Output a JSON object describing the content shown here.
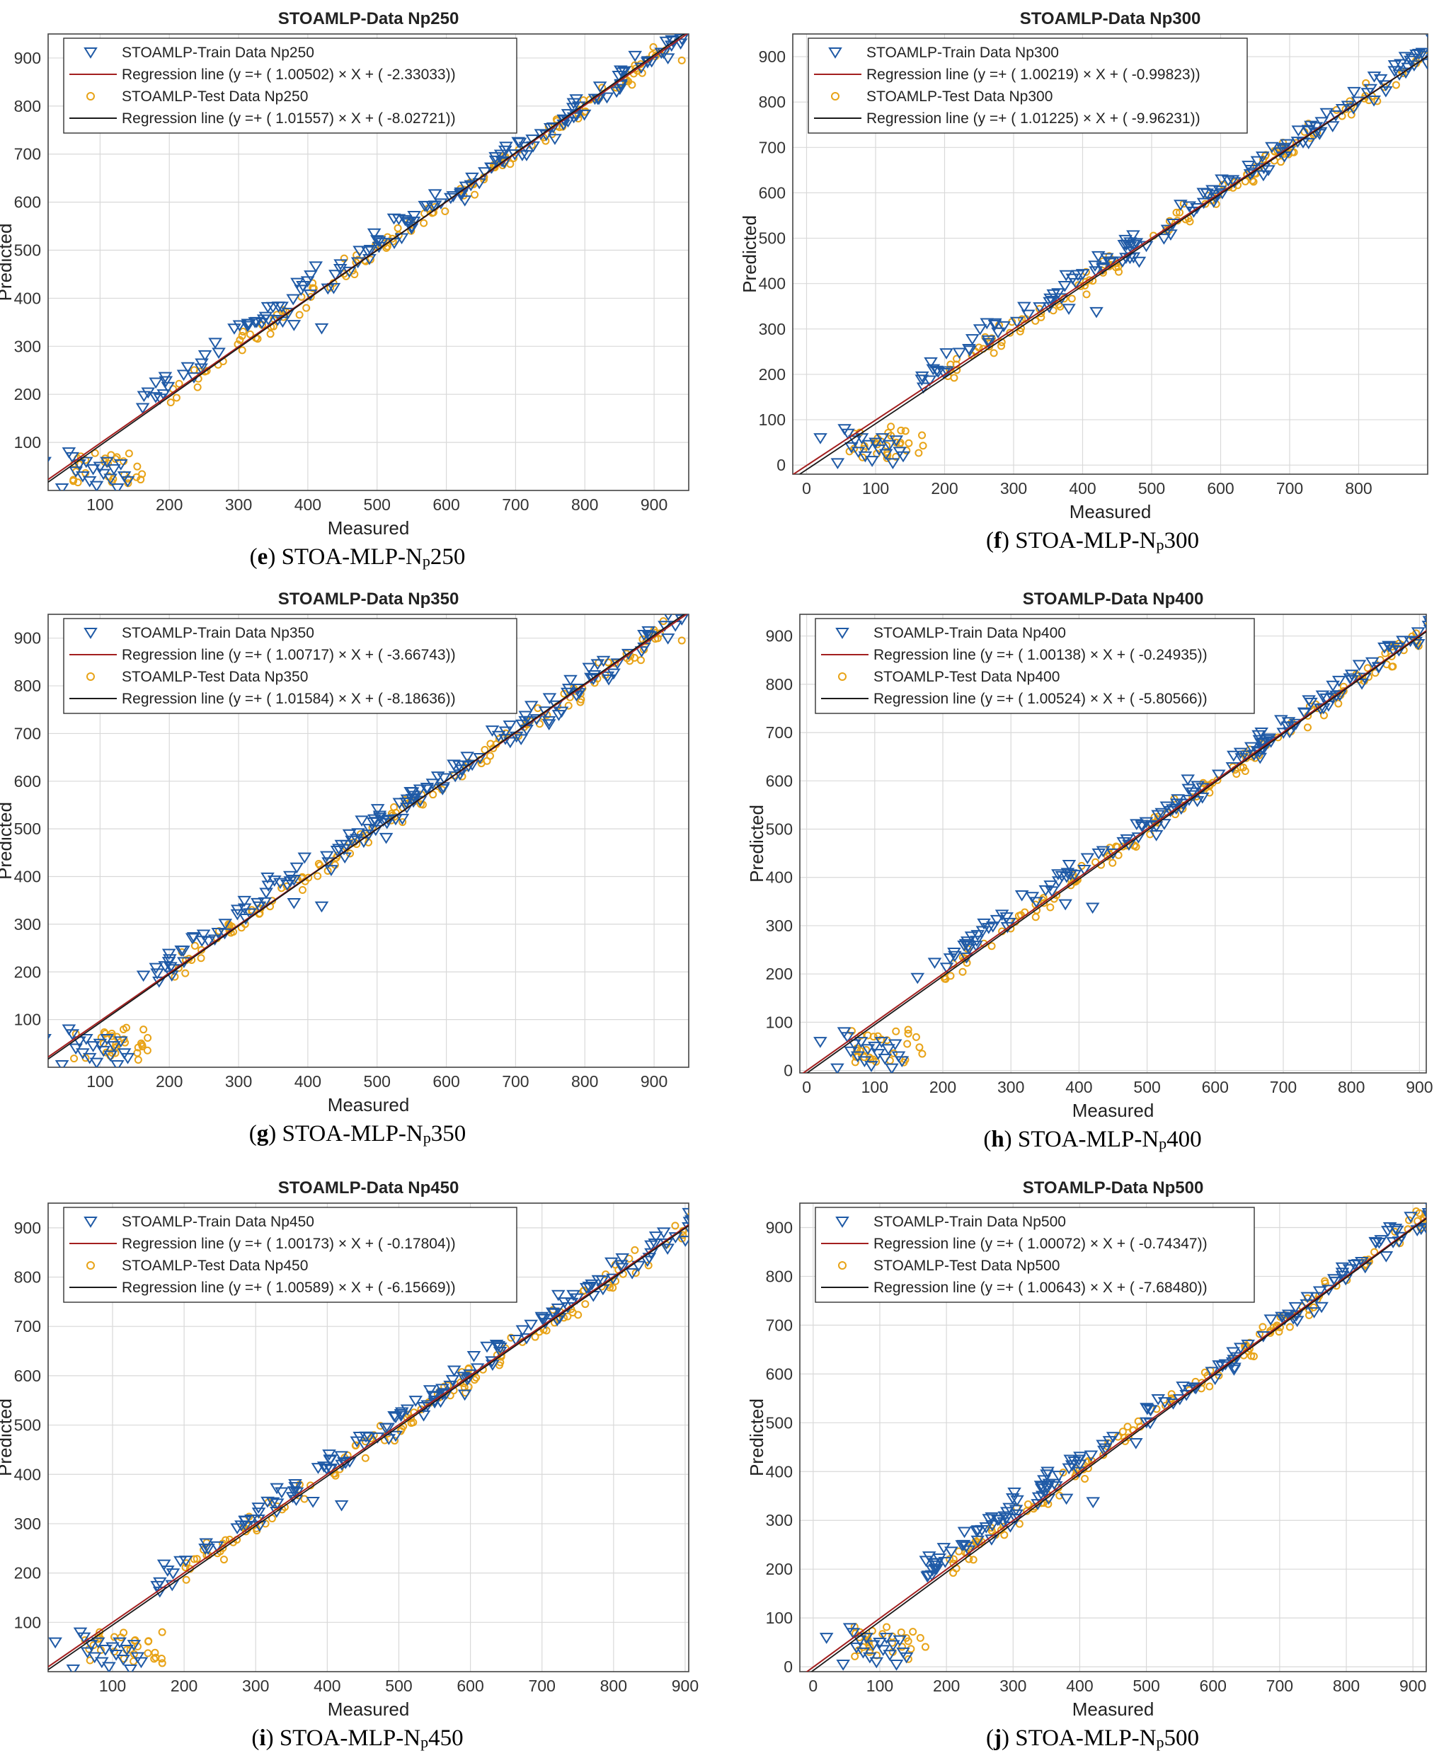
{
  "colors": {
    "train": "#1f5aa6",
    "test": "#e8a317",
    "reg_train": "#a31f1f",
    "reg_test": "#1a1a1a",
    "grid": "#d9d9d9"
  },
  "chart_data": [
    {
      "type": "scatter",
      "id": "e",
      "title": "STOAMLP-Data Np250",
      "xlabel": "Measured",
      "ylabel": "Predicted",
      "xlim": [
        25,
        950
      ],
      "ylim": [
        0,
        950
      ],
      "xticks": [
        100,
        200,
        300,
        400,
        500,
        600,
        700,
        800,
        900
      ],
      "yticks": [
        100,
        200,
        300,
        400,
        500,
        600,
        700,
        800,
        900
      ],
      "legend": [
        "STOAMLP-Train Data Np250",
        "Regression line (y =+ ( 1.00502) × X + ( -2.33033))",
        "STOAMLP-Test Data Np250",
        "Regression line (y =+ ( 1.01557) × X + ( -8.02721))"
      ],
      "reg_train": {
        "slope": 1.00502,
        "intercept": -2.33033
      },
      "reg_test": {
        "slope": 1.01557,
        "intercept": -8.02721
      },
      "caption": {
        "letter": "e",
        "prefix": "STOA-MLP-N",
        "sub": "p",
        "suffix": "250"
      }
    },
    {
      "type": "scatter",
      "id": "f",
      "title": "STOAMLP-Data Np300",
      "xlabel": "Measured",
      "ylabel": "Predicted",
      "xlim": [
        -20,
        900
      ],
      "ylim": [
        -20,
        950
      ],
      "xticks": [
        0,
        100,
        200,
        300,
        400,
        500,
        600,
        700,
        800
      ],
      "yticks": [
        0,
        100,
        200,
        300,
        400,
        500,
        600,
        700,
        800,
        900
      ],
      "legend": [
        "STOAMLP-Train Data Np300",
        "Regression line (y =+ ( 1.00219) × X + ( -0.99823))",
        "STOAMLP-Test Data Np300",
        "Regression line (y =+ ( 1.01225) × X + ( -9.96231))"
      ],
      "reg_train": {
        "slope": 1.00219,
        "intercept": -0.99823
      },
      "reg_test": {
        "slope": 1.01225,
        "intercept": -9.96231
      },
      "caption": {
        "letter": "f",
        "prefix": "STOA-MLP-N",
        "sub": "p",
        "suffix": "300"
      }
    },
    {
      "type": "scatter",
      "id": "g",
      "title": "STOAMLP-Data Np350",
      "xlabel": "Measured",
      "ylabel": "Predicted",
      "xlim": [
        25,
        950
      ],
      "ylim": [
        0,
        950
      ],
      "xticks": [
        100,
        200,
        300,
        400,
        500,
        600,
        700,
        800,
        900
      ],
      "yticks": [
        100,
        200,
        300,
        400,
        500,
        600,
        700,
        800,
        900
      ],
      "legend": [
        "STOAMLP-Train Data Np350",
        "Regression line (y =+ ( 1.00717) × X + ( -3.66743))",
        "STOAMLP-Test Data Np350",
        "Regression line (y =+ ( 1.01584) × X + ( -8.18636))"
      ],
      "reg_train": {
        "slope": 1.00717,
        "intercept": -3.66743
      },
      "reg_test": {
        "slope": 1.01584,
        "intercept": -8.18636
      },
      "caption": {
        "letter": "g",
        "prefix": "STOA-MLP-N",
        "sub": "p",
        "suffix": "350"
      }
    },
    {
      "type": "scatter",
      "id": "h",
      "title": "STOAMLP-Data Np400",
      "xlabel": "Measured",
      "ylabel": "Predicted",
      "xlim": [
        -10,
        910
      ],
      "ylim": [
        -5,
        945
      ],
      "xticks": [
        0,
        100,
        200,
        300,
        400,
        500,
        600,
        700,
        800,
        900
      ],
      "yticks": [
        0,
        100,
        200,
        300,
        400,
        500,
        600,
        700,
        800,
        900
      ],
      "legend": [
        "STOAMLP-Train Data Np400",
        "Regression line (y =+ ( 1.00138) × X + ( -0.24935))",
        "STOAMLP-Test Data Np400",
        "Regression line (y =+ ( 1.00524) × X + ( -5.80566))"
      ],
      "reg_train": {
        "slope": 1.00138,
        "intercept": -0.24935
      },
      "reg_test": {
        "slope": 1.00524,
        "intercept": -5.80566
      },
      "caption": {
        "letter": "h",
        "prefix": "STOA-MLP-N",
        "sub": "p",
        "suffix": "400"
      }
    },
    {
      "type": "scatter",
      "id": "i",
      "title": "STOAMLP-Data Np450",
      "xlabel": "Measured",
      "ylabel": "Predicted",
      "xlim": [
        10,
        905
      ],
      "ylim": [
        0,
        950
      ],
      "xticks": [
        100,
        200,
        300,
        400,
        500,
        600,
        700,
        800,
        900
      ],
      "yticks": [
        100,
        200,
        300,
        400,
        500,
        600,
        700,
        800,
        900
      ],
      "legend": [
        "STOAMLP-Train Data Np450",
        "Regression line (y =+ ( 1.00173) × X + ( -0.17804))",
        "STOAMLP-Test Data Np450",
        "Regression line (y =+ ( 1.00589) × X + ( -6.15669))"
      ],
      "reg_train": {
        "slope": 1.00173,
        "intercept": -0.17804
      },
      "reg_test": {
        "slope": 1.00589,
        "intercept": -6.15669
      },
      "caption": {
        "letter": "i",
        "prefix": "STOA-MLP-N",
        "sub": "p",
        "suffix": "450"
      }
    },
    {
      "type": "scatter",
      "id": "j",
      "title": "STOAMLP-Data Np500",
      "xlabel": "Measured",
      "ylabel": "Predicted",
      "xlim": [
        -20,
        920
      ],
      "ylim": [
        -10,
        950
      ],
      "xticks": [
        0,
        100,
        200,
        300,
        400,
        500,
        600,
        700,
        800,
        900
      ],
      "yticks": [
        0,
        100,
        200,
        300,
        400,
        500,
        600,
        700,
        800,
        900
      ],
      "legend": [
        "STOAMLP-Train Data Np500",
        "Regression line (y =+ ( 1.00072) × X + ( -0.74347))",
        "STOAMLP-Test Data Np500",
        "Regression line (y =+ ( 1.00643) × X + ( -7.68480))"
      ],
      "reg_train": {
        "slope": 1.00072,
        "intercept": -0.74347
      },
      "reg_test": {
        "slope": 1.00643,
        "intercept": -7.6848
      },
      "caption": {
        "letter": "j",
        "prefix": "STOA-MLP-N",
        "sub": "p",
        "suffix": "500"
      }
    }
  ]
}
